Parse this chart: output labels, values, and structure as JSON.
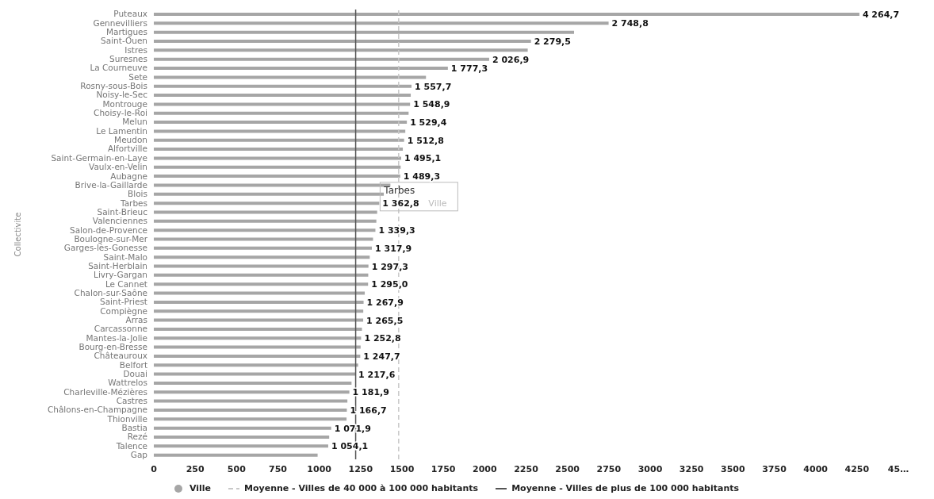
{
  "chart_data": {
    "type": "bar",
    "orientation": "horizontal",
    "ylabel": "Collectivite",
    "categories": [
      "Puteaux",
      "Gennevilliers",
      "Martigues",
      "Saint-Ouen",
      "Istres",
      "Suresnes",
      "La Courneuve",
      "Sete",
      "Rosny-sous-Bois",
      "Noisy-le-Sec",
      "Montrouge",
      "Choisy-le-Roi",
      "Melun",
      "Le Lamentin",
      "Meudon",
      "Alfortville",
      "Saint-Germain-en-Laye",
      "Vaulx-en-Velin",
      "Aubagne",
      "Brive-la-Gaillarde",
      "Blois",
      "Tarbes",
      "Saint-Brieuc",
      "Valenciennes",
      "Salon-de-Provence",
      "Boulogne-sur-Mer",
      "Garges-lès-Gonesse",
      "Saint-Malo",
      "Saint-Herblain",
      "Livry-Gargan",
      "Le Cannet",
      "Chalon-sur-Saône",
      "Saint-Priest",
      "Compiègne",
      "Arras",
      "Carcassonne",
      "Mantes-la-Jolie",
      "Bourg-en-Bresse",
      "Châteauroux",
      "Belfort",
      "Douai",
      "Wattrelos",
      "Charleville-Mézières",
      "Castres",
      "Châlons-en-Champagne",
      "Thionville",
      "Bastia",
      "Rezé",
      "Talence",
      "Gap"
    ],
    "series": [
      {
        "name": "Ville",
        "color": "#a6a6a6",
        "values": [
          4264.7,
          2748.8,
          2540,
          2279.5,
          2260,
          2026.9,
          1777.3,
          1645,
          1557.7,
          1553,
          1548.9,
          1540,
          1529.4,
          1520,
          1512.8,
          1505,
          1495.1,
          1492,
          1489.3,
          1430,
          1390,
          1362.8,
          1350,
          1345,
          1339.3,
          1325,
          1317.9,
          1305,
          1297.3,
          1296,
          1295.0,
          1275,
          1267.9,
          1266,
          1265.5,
          1258,
          1252.8,
          1250,
          1247.7,
          1235,
          1217.6,
          1195,
          1181.9,
          1170,
          1166.7,
          1165,
          1071.9,
          1060,
          1054.1,
          990
        ],
        "value_labels": [
          "4 264,7",
          "2 748,8",
          null,
          "2 279,5",
          null,
          "2 026,9",
          "1 777,3",
          null,
          "1 557,7",
          null,
          "1 548,9",
          null,
          "1 529,4",
          null,
          "1 512,8",
          null,
          "1 495,1",
          null,
          "1 489,3",
          null,
          null,
          "1 362,8",
          null,
          null,
          "1 339,3",
          null,
          "1 317,9",
          null,
          "1 297,3",
          null,
          "1 295,0",
          null,
          "1 267,9",
          null,
          "1 265,5",
          null,
          "1 252,8",
          null,
          "1 247,7",
          null,
          "1 217,6",
          null,
          "1 181,9",
          null,
          "1 166,7",
          null,
          "1 071,9",
          null,
          "1 054,1",
          null
        ]
      }
    ],
    "xlim": [
      0,
      4500
    ],
    "xticks": [
      0,
      250,
      500,
      750,
      1000,
      1250,
      1500,
      1750,
      2000,
      2250,
      2500,
      2750,
      3000,
      3250,
      3500,
      3750,
      4000,
      4250,
      {
        "value": 4500,
        "label": "45…"
      }
    ],
    "ref_lines": [
      {
        "axis": "x",
        "value": 1480,
        "label": "Moyenne - Villes de 40 000 à 100 000 habitants",
        "color": "#c8c8c8",
        "line_style": "dashed"
      },
      {
        "axis": "x",
        "value": 1220,
        "label": "Moyenne - Villes de plus de 100 000 habitants",
        "color": "#555555",
        "line_style": "solid"
      }
    ],
    "annotations": [
      {
        "text": "Tarbes",
        "x": 1362.8,
        "y": "Tarbes"
      }
    ],
    "legend": "bottom",
    "marker": "circle"
  }
}
